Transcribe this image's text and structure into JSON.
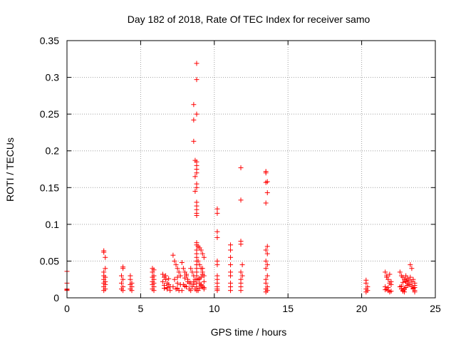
{
  "chart_data": {
    "type": "scatter",
    "title": "Day 182 of 2018, Rate Of TEC Index for receiver samo",
    "xlabel": "GPS time / hours",
    "ylabel": "ROTI / TECUs",
    "xlim": [
      0,
      25
    ],
    "ylim": [
      0,
      0.35
    ],
    "x_ticks": [
      0,
      5,
      10,
      15,
      20,
      25
    ],
    "x_tick_labels": [
      "0",
      "5",
      "10",
      "15",
      "20",
      "25"
    ],
    "y_ticks": [
      0,
      0.05,
      0.1,
      0.15,
      0.2,
      0.25,
      0.3,
      0.35
    ],
    "y_tick_labels": [
      "0",
      "0.05",
      "0.1",
      "0.15",
      "0.2",
      "0.25",
      "0.3",
      "0.35"
    ],
    "grid": true,
    "marker": "plus",
    "color": "#ff0000",
    "series": [
      {
        "x": [
          0.0,
          0.0,
          0.0,
          0.0,
          0.0,
          2.5,
          2.5,
          2.6,
          2.6,
          2.5,
          2.5,
          2.6,
          2.5,
          2.6,
          2.5,
          2.6,
          2.5,
          2.6,
          2.5,
          3.8,
          3.8,
          3.7,
          3.8,
          3.7,
          3.8,
          3.7,
          3.8,
          4.3,
          4.3,
          4.4,
          4.3,
          4.4,
          4.3,
          4.4,
          5.8,
          5.9,
          5.8,
          5.9,
          5.8,
          5.9,
          5.8,
          5.9,
          5.8,
          5.9,
          5.8,
          5.9,
          6.5,
          6.6,
          6.7,
          6.8,
          6.9,
          7.0,
          6.6,
          6.8,
          7.0,
          6.5,
          6.7,
          6.9,
          6.6,
          6.8,
          7.2,
          7.3,
          7.4,
          7.5,
          7.6,
          7.7,
          7.3,
          7.5,
          7.7,
          7.2,
          7.4,
          7.6,
          7.5,
          7.5,
          7.8,
          7.9,
          8.0,
          8.1,
          8.2,
          8.3,
          7.9,
          8.1,
          8.3,
          7.8,
          8.0,
          8.2,
          8.1,
          8.0,
          8.4,
          8.5,
          8.6,
          8.7,
          8.4,
          8.6,
          8.5,
          8.7,
          8.4,
          8.6,
          8.6,
          8.6,
          8.6,
          8.7,
          8.7,
          8.7,
          8.8,
          8.8,
          8.8,
          8.8,
          8.8,
          8.8,
          8.8,
          8.8,
          8.8,
          8.8,
          8.8,
          8.8,
          8.8,
          8.8,
          8.8,
          8.8,
          8.8,
          8.8,
          8.8,
          8.8,
          8.8,
          8.8,
          8.8,
          8.8,
          8.8,
          8.8,
          8.8,
          8.8,
          8.9,
          9.0,
          9.1,
          9.2,
          9.3,
          8.9,
          9.0,
          9.1,
          9.2,
          9.3,
          8.9,
          9.0,
          9.1,
          9.2,
          9.3,
          8.9,
          9.1,
          9.3,
          9.0,
          9.2,
          9.2,
          9.1,
          9.3,
          9.0,
          10.2,
          10.2,
          10.2,
          10.2,
          10.2,
          10.2,
          10.2,
          10.2,
          10.2,
          10.2,
          10.2,
          10.2,
          11.1,
          11.1,
          11.1,
          11.1,
          11.1,
          11.1,
          11.1,
          11.1,
          11.1,
          11.8,
          11.8,
          11.8,
          11.8,
          11.9,
          11.8,
          11.9,
          11.8,
          11.8,
          11.8,
          11.8,
          13.5,
          13.5,
          13.6,
          13.5,
          13.6,
          13.5,
          13.6,
          13.5,
          13.6,
          13.5,
          13.6,
          13.5,
          13.6,
          13.5,
          13.5,
          13.6,
          13.5,
          13.6,
          13.5,
          20.3,
          20.3,
          20.4,
          20.3,
          20.4,
          20.3,
          21.6,
          21.7,
          21.8,
          21.9,
          22.0,
          21.6,
          21.7,
          21.8,
          21.9,
          22.0,
          21.7,
          21.9,
          21.8,
          21.6,
          22.0,
          22.6,
          22.7,
          22.8,
          22.9,
          23.0,
          23.1,
          23.2,
          22.6,
          22.7,
          22.8,
          22.9,
          23.0,
          23.1,
          23.2,
          22.7,
          22.9,
          23.1,
          22.8,
          23.0,
          22.9,
          22.8,
          23.0,
          23.3,
          23.4,
          23.5,
          23.6,
          23.3,
          23.4,
          23.5,
          23.6,
          23.4,
          23.6,
          23.5,
          23.3,
          23.6,
          23.6
        ],
        "y": [
          0.036,
          0.02,
          0.012,
          0.01,
          0.011,
          0.064,
          0.062,
          0.055,
          0.04,
          0.035,
          0.03,
          0.028,
          0.025,
          0.022,
          0.02,
          0.018,
          0.015,
          0.012,
          0.01,
          0.042,
          0.04,
          0.03,
          0.025,
          0.02,
          0.015,
          0.012,
          0.01,
          0.03,
          0.025,
          0.02,
          0.018,
          0.015,
          0.012,
          0.01,
          0.04,
          0.038,
          0.035,
          0.03,
          0.028,
          0.025,
          0.022,
          0.02,
          0.018,
          0.015,
          0.012,
          0.01,
          0.032,
          0.028,
          0.025,
          0.02,
          0.018,
          0.015,
          0.013,
          0.012,
          0.01,
          0.022,
          0.03,
          0.026,
          0.017,
          0.014,
          0.058,
          0.05,
          0.045,
          0.04,
          0.035,
          0.03,
          0.025,
          0.02,
          0.018,
          0.015,
          0.012,
          0.01,
          0.013,
          0.028,
          0.048,
          0.04,
          0.035,
          0.03,
          0.025,
          0.02,
          0.018,
          0.015,
          0.012,
          0.01,
          0.027,
          0.022,
          0.032,
          0.016,
          0.04,
          0.035,
          0.03,
          0.025,
          0.02,
          0.018,
          0.015,
          0.012,
          0.01,
          0.022,
          0.263,
          0.242,
          0.213,
          0.187,
          0.165,
          0.145,
          0.319,
          0.297,
          0.25,
          0.185,
          0.18,
          0.175,
          0.17,
          0.155,
          0.15,
          0.13,
          0.125,
          0.12,
          0.115,
          0.112,
          0.075,
          0.072,
          0.065,
          0.06,
          0.055,
          0.05,
          0.045,
          0.04,
          0.035,
          0.03,
          0.025,
          0.02,
          0.015,
          0.01,
          0.07,
          0.068,
          0.065,
          0.06,
          0.055,
          0.05,
          0.045,
          0.04,
          0.035,
          0.03,
          0.025,
          0.02,
          0.018,
          0.015,
          0.012,
          0.01,
          0.028,
          0.022,
          0.013,
          0.04,
          0.032,
          0.017,
          0.014,
          0.026,
          0.121,
          0.115,
          0.09,
          0.082,
          0.05,
          0.045,
          0.025,
          0.02,
          0.015,
          0.012,
          0.01,
          0.03,
          0.072,
          0.065,
          0.055,
          0.045,
          0.035,
          0.03,
          0.02,
          0.015,
          0.01,
          0.177,
          0.133,
          0.077,
          0.073,
          0.045,
          0.035,
          0.03,
          0.025,
          0.02,
          0.015,
          0.01,
          0.172,
          0.17,
          0.158,
          0.157,
          0.143,
          0.129,
          0.07,
          0.065,
          0.06,
          0.05,
          0.045,
          0.04,
          0.03,
          0.025,
          0.02,
          0.015,
          0.012,
          0.01,
          0.008,
          0.024,
          0.02,
          0.015,
          0.012,
          0.01,
          0.008,
          0.035,
          0.03,
          0.025,
          0.02,
          0.018,
          0.015,
          0.012,
          0.01,
          0.008,
          0.022,
          0.028,
          0.032,
          0.014,
          0.011,
          0.009,
          0.035,
          0.03,
          0.028,
          0.025,
          0.022,
          0.02,
          0.018,
          0.015,
          0.012,
          0.01,
          0.008,
          0.03,
          0.026,
          0.024,
          0.016,
          0.013,
          0.017,
          0.021,
          0.023,
          0.011,
          0.009,
          0.014,
          0.045,
          0.04,
          0.025,
          0.02,
          0.018,
          0.015,
          0.012,
          0.01,
          0.022,
          0.017,
          0.013,
          0.028,
          0.014,
          0.008
        ]
      }
    ]
  }
}
